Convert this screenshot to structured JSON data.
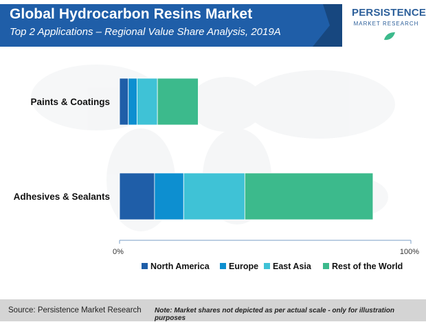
{
  "header": {
    "title": "Global Hydrocarbon Resins Market",
    "subtitle": "Top 2 Applications – Regional Value Share Analysis, 2019A"
  },
  "logo": {
    "name": "PERSISTENCE",
    "tagline": "MARKET RESEARCH"
  },
  "colors": {
    "banner": "#1f5ea8",
    "banner_dark": "#17477f",
    "north_america": "#1f5ea8",
    "europe": "#0d8fd0",
    "east_asia": "#3fc2d6",
    "rest_of_world": "#3cba8c"
  },
  "chart_data": {
    "type": "bar",
    "orientation": "horizontal",
    "stacked": true,
    "categories": [
      "Paints & Coatings",
      "Adhesives & Sealants"
    ],
    "series": [
      {
        "name": "North America",
        "values": [
          3,
          12
        ]
      },
      {
        "name": "Europe",
        "values": [
          3,
          10
        ]
      },
      {
        "name": "East Asia",
        "values": [
          7,
          21
        ]
      },
      {
        "name": "Rest of the World",
        "values": [
          14,
          44
        ]
      }
    ],
    "xlim": [
      0,
      100
    ],
    "x_tick_labels": [
      "0%",
      "100%"
    ],
    "legend_position": "bottom",
    "grid": false
  },
  "footer": {
    "source": "Source: Persistence Market Research",
    "note": "Note: Market shares not depicted as per actual scale - only for illustration purposes"
  }
}
